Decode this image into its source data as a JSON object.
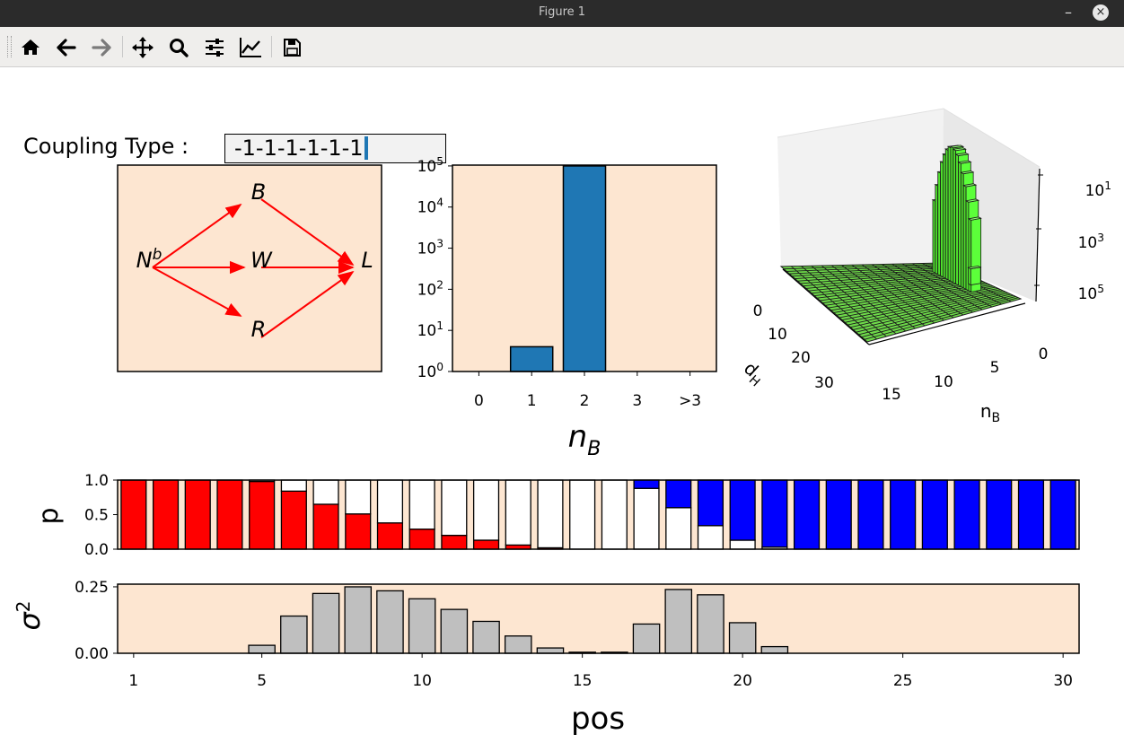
{
  "window": {
    "title": "Figure 1",
    "minimize": "–",
    "close": "×"
  },
  "toolbar": {
    "buttons": [
      {
        "name": "home",
        "icon": "home-icon"
      },
      {
        "name": "back",
        "icon": "arrow-left-icon"
      },
      {
        "name": "forward",
        "icon": "arrow-right-icon"
      },
      {
        "name": "pan",
        "icon": "move-icon"
      },
      {
        "name": "zoom",
        "icon": "magnifier-icon"
      },
      {
        "name": "subplots",
        "icon": "sliders-icon"
      },
      {
        "name": "customize",
        "icon": "line-chart-icon"
      },
      {
        "name": "save",
        "icon": "floppy-disk-icon"
      }
    ]
  },
  "coupling": {
    "label": "Coupling Type :",
    "value": "-1-1-1-1-1-1"
  },
  "colors": {
    "panel_bg": "#fde6d1",
    "arrow": "#ff0000",
    "bar_blue": "#1f77b4",
    "p_red": "#ff0000",
    "p_blue": "#0000ff",
    "var_gray": "#bfbfbf",
    "surface_green": "#5cff3a"
  },
  "network": {
    "nodes": [
      {
        "id": "Nb",
        "label": "N",
        "sup": "b"
      },
      {
        "id": "B",
        "label": "B"
      },
      {
        "id": "W",
        "label": "W"
      },
      {
        "id": "R",
        "label": "R"
      },
      {
        "id": "L",
        "label": "L"
      }
    ],
    "edges": [
      [
        "Nb",
        "B"
      ],
      [
        "Nb",
        "W"
      ],
      [
        "Nb",
        "R"
      ],
      [
        "B",
        "L"
      ],
      [
        "W",
        "L"
      ],
      [
        "R",
        "L"
      ]
    ]
  },
  "chart_data": [
    {
      "type": "bar",
      "id": "nb-histogram",
      "categories": [
        "0",
        "1",
        "2",
        "3",
        ">3"
      ],
      "values": [
        0,
        4,
        100000,
        0,
        0
      ],
      "xlabel": "n_B",
      "yscale": "log",
      "ylim": [
        1,
        100000
      ],
      "yticks": [
        {
          "base": "10",
          "exp": "0"
        },
        {
          "base": "10",
          "exp": "1"
        },
        {
          "base": "10",
          "exp": "2"
        },
        {
          "base": "10",
          "exp": "3"
        },
        {
          "base": "10",
          "exp": "4"
        },
        {
          "base": "10",
          "exp": "5"
        }
      ]
    },
    {
      "type": "bar3d",
      "id": "dh-nb-surface",
      "xlabel": "d_H",
      "ylabel": "n_B",
      "xticks": [
        "0",
        "10",
        "20",
        "30"
      ],
      "yticks": [
        "15",
        "10",
        "5",
        "0"
      ],
      "zscale": "log",
      "zticks": [
        {
          "base": "10",
          "exp": "1"
        },
        {
          "base": "10",
          "exp": "3"
        },
        {
          "base": "10",
          "exp": "5"
        }
      ],
      "peak": {
        "nb": 2,
        "dh_range": [
          6,
          20
        ],
        "max": 100000
      }
    },
    {
      "type": "stacked-bar",
      "id": "p-per-position",
      "ylabel": "p",
      "ylim": [
        0,
        1
      ],
      "yticks": [
        "0.0",
        "0.5",
        "1.0"
      ],
      "x": [
        1,
        2,
        3,
        4,
        5,
        6,
        7,
        8,
        9,
        10,
        11,
        12,
        13,
        14,
        15,
        16,
        17,
        18,
        19,
        20,
        21,
        22,
        23,
        24,
        25,
        26,
        27,
        28,
        29,
        30
      ],
      "series": [
        {
          "color": "#ff0000",
          "values": [
            1,
            1,
            1,
            1,
            0.98,
            0.84,
            0.65,
            0.51,
            0.38,
            0.29,
            0.2,
            0.13,
            0.06,
            0.02,
            0,
            0,
            0,
            0,
            0,
            0,
            0,
            0,
            0,
            0,
            0,
            0,
            0,
            0,
            0,
            0
          ]
        },
        {
          "color": "#ffffff",
          "values": [
            0,
            0,
            0,
            0,
            0.02,
            0.16,
            0.35,
            0.49,
            0.62,
            0.71,
            0.8,
            0.87,
            0.94,
            0.98,
            1,
            1,
            0.88,
            0.6,
            0.34,
            0.13,
            0.03,
            0,
            0,
            0,
            0,
            0,
            0,
            0,
            0,
            0
          ]
        },
        {
          "color": "#0000ff",
          "values": [
            0,
            0,
            0,
            0,
            0,
            0,
            0,
            0,
            0,
            0,
            0,
            0,
            0,
            0,
            0,
            0,
            0.12,
            0.4,
            0.66,
            0.87,
            0.97,
            1,
            1,
            1,
            1,
            1,
            1,
            1,
            1,
            1
          ]
        }
      ]
    },
    {
      "type": "bar",
      "id": "variance-per-position",
      "ylabel": "σ",
      "ylabel_sup": "2",
      "xlabel": "pos",
      "ylim": [
        0,
        0.26
      ],
      "yticks": [
        "0.00",
        "0.25"
      ],
      "xticks": [
        "1",
        "5",
        "10",
        "15",
        "20",
        "25",
        "30"
      ],
      "x": [
        1,
        2,
        3,
        4,
        5,
        6,
        7,
        8,
        9,
        10,
        11,
        12,
        13,
        14,
        15,
        16,
        17,
        18,
        19,
        20,
        21,
        22,
        23,
        24,
        25,
        26,
        27,
        28,
        29,
        30
      ],
      "values": [
        0,
        0,
        0,
        0,
        0.03,
        0.14,
        0.225,
        0.25,
        0.235,
        0.205,
        0.165,
        0.12,
        0.065,
        0.02,
        0.004,
        0.004,
        0.11,
        0.24,
        0.22,
        0.115,
        0.025,
        0,
        0,
        0,
        0,
        0,
        0,
        0,
        0,
        0
      ]
    }
  ]
}
